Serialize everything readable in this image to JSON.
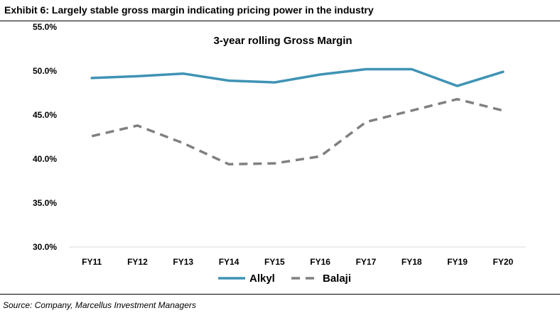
{
  "exhibit": {
    "title": "Exhibit 6: Largely stable gross margin indicating pricing power in the industry",
    "source": "Source: Company, Marcellus Investment Managers"
  },
  "chart_data": {
    "type": "line",
    "title": "3-year rolling Gross Margin",
    "xlabel": "",
    "ylabel": "",
    "categories": [
      "FY11",
      "FY12",
      "FY13",
      "FY14",
      "FY15",
      "FY16",
      "FY17",
      "FY18",
      "FY19",
      "FY20"
    ],
    "ylim": [
      30.0,
      55.0
    ],
    "yticks": [
      30.0,
      35.0,
      40.0,
      45.0,
      50.0,
      55.0
    ],
    "ytick_labels": [
      "30.0%",
      "35.0%",
      "40.0%",
      "45.0%",
      "50.0%",
      "55.0%"
    ],
    "grid": false,
    "legend_position": "bottom",
    "series": [
      {
        "name": "Alkyl",
        "values": [
          49.2,
          49.4,
          49.7,
          48.9,
          48.7,
          49.6,
          50.2,
          50.2,
          48.3,
          49.9
        ],
        "color": "#3f93b4",
        "style": "solid"
      },
      {
        "name": "Balaji",
        "values": [
          42.6,
          43.8,
          41.8,
          39.4,
          39.5,
          40.3,
          44.2,
          45.5,
          46.8,
          45.5
        ],
        "color": "#808080",
        "style": "dashed"
      }
    ]
  }
}
